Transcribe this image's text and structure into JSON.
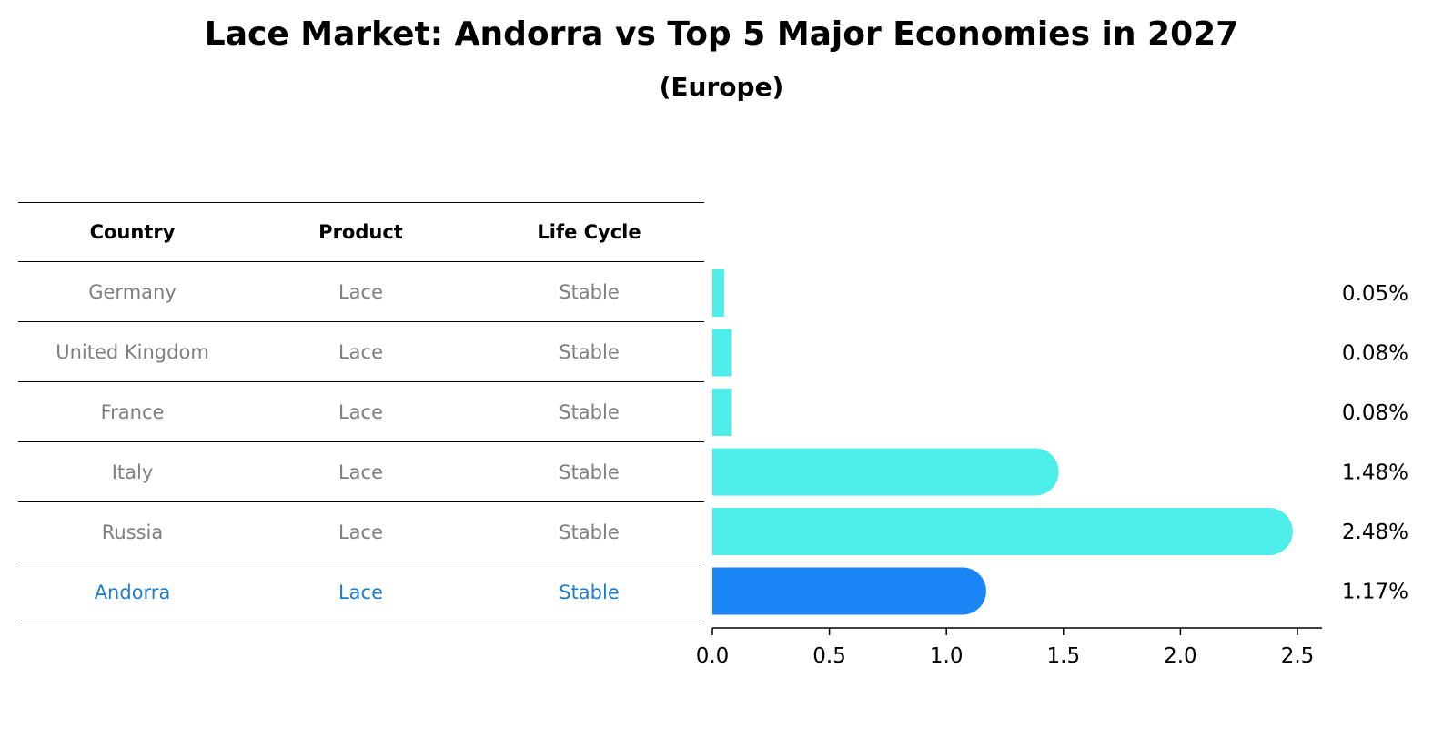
{
  "title": "Lace Market: Andorra vs Top 5 Major Economies in 2027",
  "subtitle": "(Europe)",
  "table": {
    "columns": [
      "Country",
      "Product",
      "Life Cycle"
    ],
    "rows": [
      {
        "country": "Germany",
        "product": "Lace",
        "life_cycle": "Stable"
      },
      {
        "country": "United Kingdom",
        "product": "Lace",
        "life_cycle": "Stable"
      },
      {
        "country": "France",
        "product": "Lace",
        "life_cycle": "Stable"
      },
      {
        "country": "Italy",
        "product": "Lace",
        "life_cycle": "Stable"
      },
      {
        "country": "Russia",
        "product": "Lace",
        "life_cycle": "Stable"
      },
      {
        "country": "Andorra",
        "product": "Lace",
        "life_cycle": "Stable"
      }
    ]
  },
  "chart_data": {
    "type": "bar",
    "orientation": "horizontal",
    "categories": [
      "Germany",
      "United Kingdom",
      "France",
      "Italy",
      "Russia",
      "Andorra"
    ],
    "values": [
      0.05,
      0.08,
      0.08,
      1.48,
      2.48,
      1.17
    ],
    "data_labels": [
      "0.05%",
      "0.08%",
      "0.08%",
      "1.48%",
      "2.48%",
      "1.17%"
    ],
    "xlim": [
      0,
      2.6
    ],
    "xticks": [
      0.0,
      0.5,
      1.0,
      1.5,
      2.0,
      2.5
    ],
    "xtick_labels": [
      "0.0",
      "0.5",
      "1.0",
      "1.5",
      "2.0",
      "2.5"
    ],
    "highlight": "Andorra",
    "colors": {
      "default": "#4deee9",
      "highlight": "#1a86f5"
    },
    "grid": false,
    "legend": "none"
  }
}
